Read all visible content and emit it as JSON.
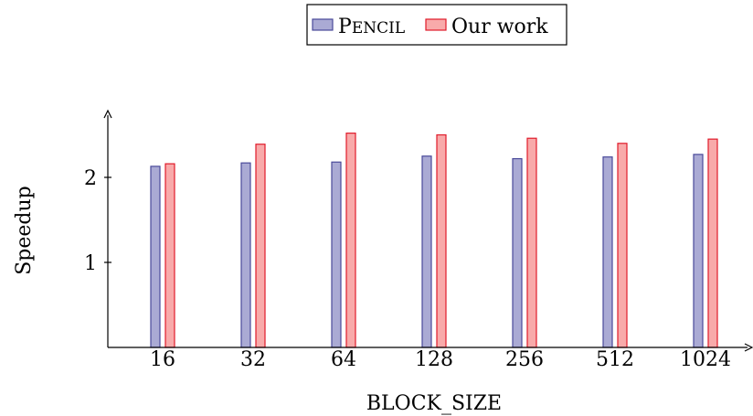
{
  "chart_data": {
    "type": "bar",
    "categories": [
      "16",
      "32",
      "64",
      "128",
      "256",
      "512",
      "1024"
    ],
    "series": [
      {
        "name": "Pencil",
        "values": [
          2.13,
          2.17,
          2.18,
          2.25,
          2.22,
          2.24,
          2.27
        ],
        "color": "#aaaad4",
        "stroke": "#4a4a9a"
      },
      {
        "name": "Our work",
        "values": [
          2.16,
          2.39,
          2.52,
          2.5,
          2.46,
          2.4,
          2.45
        ],
        "color": "#f8aaaa",
        "stroke": "#e01a2a"
      }
    ],
    "xlabel": "BLOCK_SIZE",
    "ylabel": "Speedup",
    "ylim": [
      0,
      2.8
    ],
    "yticks": [
      "1",
      "2"
    ],
    "legend_position": "top-center",
    "grid": false
  }
}
